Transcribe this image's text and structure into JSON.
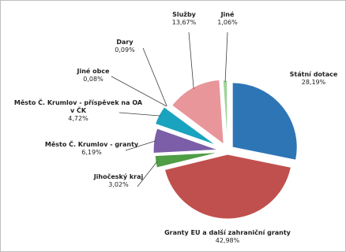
{
  "chart_data": {
    "type": "pie",
    "exploded": true,
    "title": "",
    "slices": [
      {
        "name": "Státní dotace",
        "value": 28.19,
        "label": "28,19%",
        "color": "#2e75b6"
      },
      {
        "name": "Granty EU a další zahraniční granty",
        "value": 42.98,
        "label": "42,98%",
        "color": "#c0504d"
      },
      {
        "name": "Jihočeský kraj",
        "value": 3.02,
        "label": "3,02%",
        "color": "#4f9d45"
      },
      {
        "name": "Město Č. Krumlov - granty",
        "value": 6.19,
        "label": "6,19%",
        "color": "#7b5ea7"
      },
      {
        "name": "Město Č. Krumlov - příspěvek na OA v ČK",
        "value": 4.72,
        "label": "4,72%",
        "color": "#1aa3bf"
      },
      {
        "name": "Jiné obce",
        "value": 0.08,
        "label": "0,08%",
        "color": "#2c4d75"
      },
      {
        "name": "Dary",
        "value": 0.09,
        "label": "0,09%",
        "color": "#8c3a38"
      },
      {
        "name": "Služby",
        "value": 13.67,
        "label": "13,67%",
        "color": "#e8969a"
      },
      {
        "name": "Jiné",
        "value": 1.06,
        "label": "1,06%",
        "color": "#9fd39a"
      }
    ]
  }
}
